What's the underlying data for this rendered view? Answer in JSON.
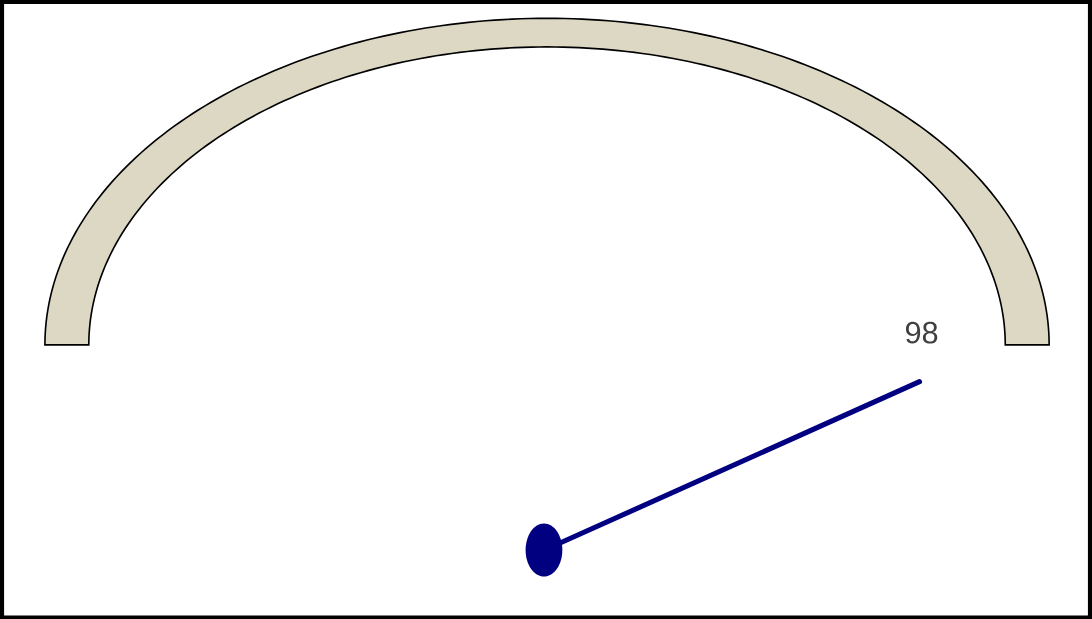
{
  "chart_data": {
    "type": "other",
    "values": [
      98
    ],
    "data_labels": true,
    "color": "#000080"
  }
}
